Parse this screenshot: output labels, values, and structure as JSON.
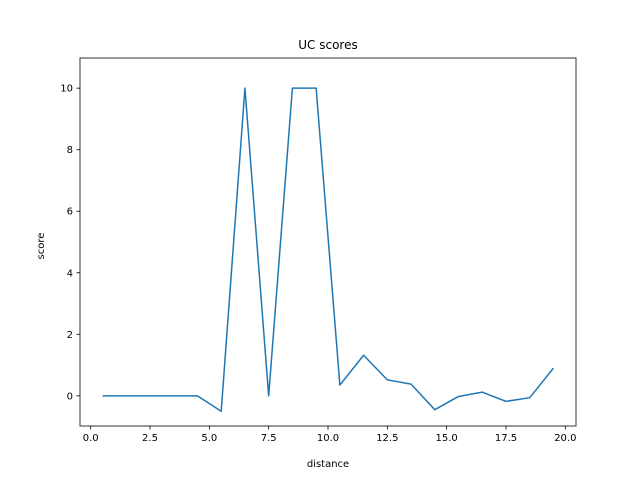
{
  "chart_data": {
    "type": "line",
    "title": "UC scores",
    "xlabel": "distance",
    "ylabel": "score",
    "xlim": [
      -0.45,
      20.45
    ],
    "ylim": [
      -0.98,
      10.98
    ],
    "xticks": [
      0.0,
      2.5,
      5.0,
      7.5,
      10.0,
      12.5,
      15.0,
      17.5,
      20.0
    ],
    "xtick_labels": [
      "0.0",
      "2.5",
      "5.0",
      "7.5",
      "10.0",
      "12.5",
      "15.0",
      "17.5",
      "20.0"
    ],
    "yticks": [
      0,
      2,
      4,
      6,
      8,
      10
    ],
    "ytick_labels": [
      "0",
      "2",
      "4",
      "6",
      "8",
      "10"
    ],
    "grid": false,
    "color": "#1f77b4",
    "series": [
      {
        "x": [
          0.5,
          1.5,
          2.5,
          3.5,
          4.5,
          5.5,
          6.5,
          7.5,
          8.5,
          9.5,
          10.5,
          11.5,
          12.5,
          13.5,
          14.5,
          15.5,
          16.5,
          17.5,
          18.5,
          19.5
        ],
        "y": [
          0,
          0,
          0,
          0,
          0,
          -0.5,
          10,
          0,
          10,
          10,
          0.35,
          1.32,
          0.52,
          0.38,
          -0.45,
          -0.02,
          0.12,
          -0.18,
          -0.06,
          0.9
        ]
      }
    ]
  }
}
